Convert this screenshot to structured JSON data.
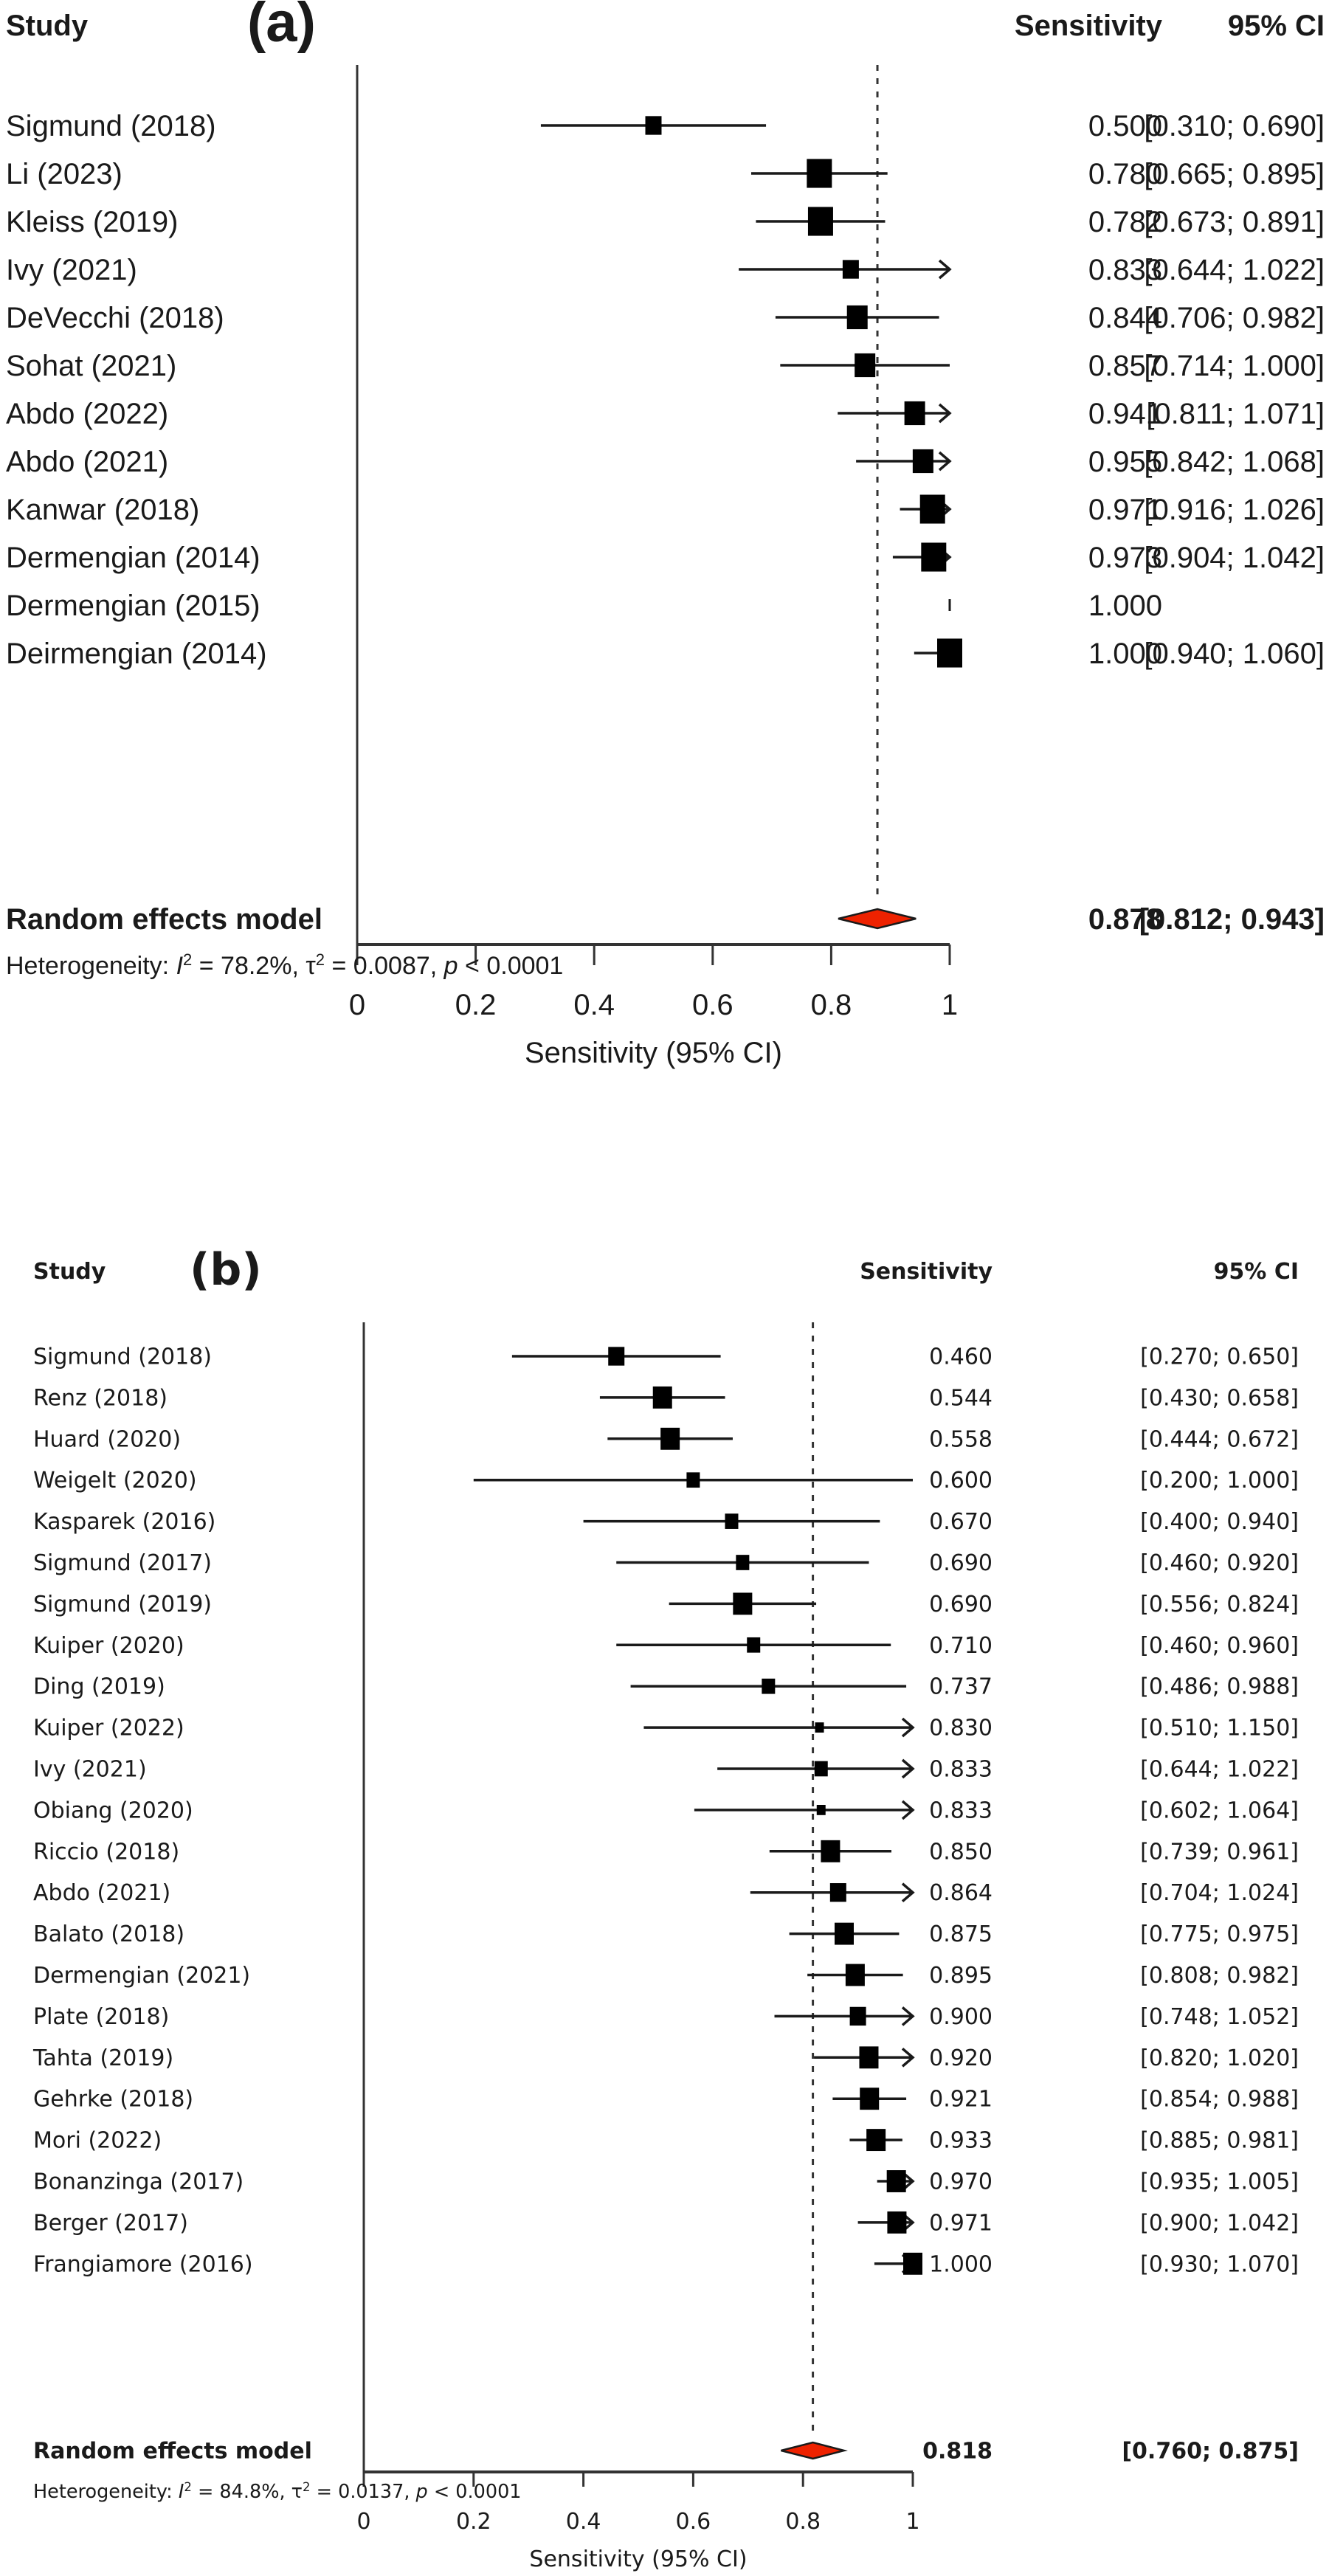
{
  "chart_data": [
    {
      "type": "forest",
      "panel_label": "(a)",
      "headers": {
        "study": "Study",
        "estimate": "Sensitivity",
        "ci": "95% CI"
      },
      "xlabel": "Sensitivity (95% CI)",
      "xlim": [
        0,
        1
      ],
      "xticks": [
        "0",
        "0.2",
        "0.4",
        "0.6",
        "0.8",
        "1"
      ],
      "xtick_values": [
        0,
        0.2,
        0.4,
        0.6,
        0.8,
        1
      ],
      "reference_line": 0.878,
      "studies": [
        {
          "study": "Sigmund (2018)",
          "estimate": 0.5,
          "lower": 0.31,
          "upper": 0.69,
          "estimate_text": "0.500",
          "ci_text": "[0.310; 0.690]",
          "weight": "small"
        },
        {
          "study": "Li (2023)",
          "estimate": 0.78,
          "lower": 0.665,
          "upper": 0.895,
          "estimate_text": "0.780",
          "ci_text": "[0.665; 0.895]",
          "weight": "large"
        },
        {
          "study": "Kleiss (2019)",
          "estimate": 0.782,
          "lower": 0.673,
          "upper": 0.891,
          "estimate_text": "0.782",
          "ci_text": "[0.673; 0.891]",
          "weight": "large"
        },
        {
          "study": "Ivy (2021)",
          "estimate": 0.833,
          "lower": 0.644,
          "upper": 1.022,
          "estimate_text": "0.833",
          "ci_text": "[0.644; 1.022]",
          "weight": "small"
        },
        {
          "study": "DeVecchi (2018)",
          "estimate": 0.844,
          "lower": 0.706,
          "upper": 0.982,
          "estimate_text": "0.844",
          "ci_text": "[0.706; 0.982]",
          "weight": "medium"
        },
        {
          "study": "Sohat (2021)",
          "estimate": 0.857,
          "lower": 0.714,
          "upper": 1.0,
          "estimate_text": "0.857",
          "ci_text": "[0.714; 1.000]",
          "weight": "medium"
        },
        {
          "study": "Abdo (2022)",
          "estimate": 0.941,
          "lower": 0.811,
          "upper": 1.071,
          "estimate_text": "0.941",
          "ci_text": "[0.811; 1.071]",
          "weight": "medium"
        },
        {
          "study": "Abdo (2021)",
          "estimate": 0.955,
          "lower": 0.842,
          "upper": 1.068,
          "estimate_text": "0.955",
          "ci_text": "[0.842; 1.068]",
          "weight": "medium"
        },
        {
          "study": "Kanwar (2018)",
          "estimate": 0.971,
          "lower": 0.916,
          "upper": 1.026,
          "estimate_text": "0.971",
          "ci_text": "[0.916; 1.026]",
          "weight": "large"
        },
        {
          "study": "Dermengian (2014)",
          "estimate": 0.973,
          "lower": 0.904,
          "upper": 1.042,
          "estimate_text": "0.973",
          "ci_text": "[0.904; 1.042]",
          "weight": "large"
        },
        {
          "study": "Dermengian (2015)",
          "estimate": 1.0,
          "lower": null,
          "upper": null,
          "estimate_text": "1.000",
          "ci_text": "",
          "weight": "tick"
        },
        {
          "study": "Deirmengian (2014)",
          "estimate": 1.0,
          "lower": 0.94,
          "upper": 1.06,
          "estimate_text": "1.000",
          "ci_text": "[0.940; 1.060]",
          "weight": "large"
        }
      ],
      "summary": {
        "label": "Random effects model",
        "estimate": 0.878,
        "lower": 0.812,
        "upper": 0.943,
        "estimate_text": "0.878",
        "ci_text": "[0.812; 0.943]",
        "color": "#ee2200"
      },
      "heterogeneity": {
        "prefix": "Heterogeneity: ",
        "i2_label": "I",
        "i2_value": " = 78.2%, ",
        "tau_label": "τ",
        "tau_value": " = 0.0087, ",
        "p_label": "p",
        "p_value": " < 0.0001"
      }
    },
    {
      "type": "forest",
      "panel_label": "(b)",
      "headers": {
        "study": "Study",
        "estimate": "Sensitivity",
        "ci": "95% CI"
      },
      "xlabel": "Sensitivity (95% CI)",
      "xlim": [
        0,
        1
      ],
      "xticks": [
        "0",
        "0.2",
        "0.4",
        "0.6",
        "0.8",
        "1"
      ],
      "xtick_values": [
        0,
        0.2,
        0.4,
        0.6,
        0.8,
        1
      ],
      "reference_line": 0.818,
      "studies": [
        {
          "study": "Sigmund (2018)",
          "estimate": 0.46,
          "lower": 0.27,
          "upper": 0.65,
          "estimate_text": "0.460",
          "ci_text": "[0.270; 0.650]",
          "weight": "medium"
        },
        {
          "study": "Renz (2018)",
          "estimate": 0.544,
          "lower": 0.43,
          "upper": 0.658,
          "estimate_text": "0.544",
          "ci_text": "[0.430; 0.658]",
          "weight": "large"
        },
        {
          "study": "Huard (2020)",
          "estimate": 0.558,
          "lower": 0.444,
          "upper": 0.672,
          "estimate_text": "0.558",
          "ci_text": "[0.444; 0.672]",
          "weight": "large"
        },
        {
          "study": "Weigelt (2020)",
          "estimate": 0.6,
          "lower": 0.2,
          "upper": 1.0,
          "estimate_text": "0.600",
          "ci_text": "[0.200; 1.000]",
          "weight": "small"
        },
        {
          "study": "Kasparek (2016)",
          "estimate": 0.67,
          "lower": 0.4,
          "upper": 0.94,
          "estimate_text": "0.670",
          "ci_text": "[0.400; 0.940]",
          "weight": "small"
        },
        {
          "study": "Sigmund (2017)",
          "estimate": 0.69,
          "lower": 0.46,
          "upper": 0.92,
          "estimate_text": "0.690",
          "ci_text": "[0.460; 0.920]",
          "weight": "small"
        },
        {
          "study": "Sigmund (2019)",
          "estimate": 0.69,
          "lower": 0.556,
          "upper": 0.824,
          "estimate_text": "0.690",
          "ci_text": "[0.556; 0.824]",
          "weight": "large"
        },
        {
          "study": "Kuiper (2020)",
          "estimate": 0.71,
          "lower": 0.46,
          "upper": 0.96,
          "estimate_text": "0.710",
          "ci_text": "[0.460; 0.960]",
          "weight": "small"
        },
        {
          "study": "Ding (2019)",
          "estimate": 0.737,
          "lower": 0.486,
          "upper": 0.988,
          "estimate_text": "0.737",
          "ci_text": "[0.486; 0.988]",
          "weight": "small"
        },
        {
          "study": "Kuiper (2022)",
          "estimate": 0.83,
          "lower": 0.51,
          "upper": 1.15,
          "estimate_text": "0.830",
          "ci_text": "[0.510; 1.150]",
          "weight": "tiny"
        },
        {
          "study": "Ivy (2021)",
          "estimate": 0.833,
          "lower": 0.644,
          "upper": 1.022,
          "estimate_text": "0.833",
          "ci_text": "[0.644; 1.022]",
          "weight": "small"
        },
        {
          "study": "Obiang (2020)",
          "estimate": 0.833,
          "lower": 0.602,
          "upper": 1.064,
          "estimate_text": "0.833",
          "ci_text": "[0.602; 1.064]",
          "weight": "tiny"
        },
        {
          "study": "Riccio (2018)",
          "estimate": 0.85,
          "lower": 0.739,
          "upper": 0.961,
          "estimate_text": "0.850",
          "ci_text": "[0.739; 0.961]",
          "weight": "large"
        },
        {
          "study": "Abdo (2021)",
          "estimate": 0.864,
          "lower": 0.704,
          "upper": 1.024,
          "estimate_text": "0.864",
          "ci_text": "[0.704; 1.024]",
          "weight": "medium"
        },
        {
          "study": "Balato (2018)",
          "estimate": 0.875,
          "lower": 0.775,
          "upper": 0.975,
          "estimate_text": "0.875",
          "ci_text": "[0.775; 0.975]",
          "weight": "large"
        },
        {
          "study": "Dermengian (2021)",
          "estimate": 0.895,
          "lower": 0.808,
          "upper": 0.982,
          "estimate_text": "0.895",
          "ci_text": "[0.808; 0.982]",
          "weight": "large"
        },
        {
          "study": "Plate (2018)",
          "estimate": 0.9,
          "lower": 0.748,
          "upper": 1.052,
          "estimate_text": "0.900",
          "ci_text": "[0.748; 1.052]",
          "weight": "medium"
        },
        {
          "study": "Tahta (2019)",
          "estimate": 0.92,
          "lower": 0.82,
          "upper": 1.02,
          "estimate_text": "0.920",
          "ci_text": "[0.820; 1.020]",
          "weight": "large"
        },
        {
          "study": "Gehrke (2018)",
          "estimate": 0.921,
          "lower": 0.854,
          "upper": 0.988,
          "estimate_text": "0.921",
          "ci_text": "[0.854; 0.988]",
          "weight": "large"
        },
        {
          "study": "Mori (2022)",
          "estimate": 0.933,
          "lower": 0.885,
          "upper": 0.981,
          "estimate_text": "0.933",
          "ci_text": "[0.885; 0.981]",
          "weight": "large"
        },
        {
          "study": "Bonanzinga (2017)",
          "estimate": 0.97,
          "lower": 0.935,
          "upper": 1.005,
          "estimate_text": "0.970",
          "ci_text": "[0.935; 1.005]",
          "weight": "large"
        },
        {
          "study": "Berger (2017)",
          "estimate": 0.971,
          "lower": 0.9,
          "upper": 1.042,
          "estimate_text": "0.971",
          "ci_text": "[0.900; 1.042]",
          "weight": "large"
        },
        {
          "study": "Frangiamore (2016)",
          "estimate": 1.0,
          "lower": 0.93,
          "upper": 1.07,
          "estimate_text": "1.000",
          "ci_text": "[0.930; 1.070]",
          "weight": "large"
        }
      ],
      "summary": {
        "label": "Random effects model",
        "estimate": 0.818,
        "lower": 0.76,
        "upper": 0.875,
        "estimate_text": "0.818",
        "ci_text": "[0.760; 0.875]",
        "color": "#ee2200"
      },
      "heterogeneity": {
        "prefix": "Heterogeneity: ",
        "i2_label": "I",
        "i2_value": " = 84.8%, ",
        "tau_label": "τ",
        "tau_value": " = 0.0137, ",
        "p_label": "p",
        "p_value": " < 0.0001"
      }
    }
  ]
}
